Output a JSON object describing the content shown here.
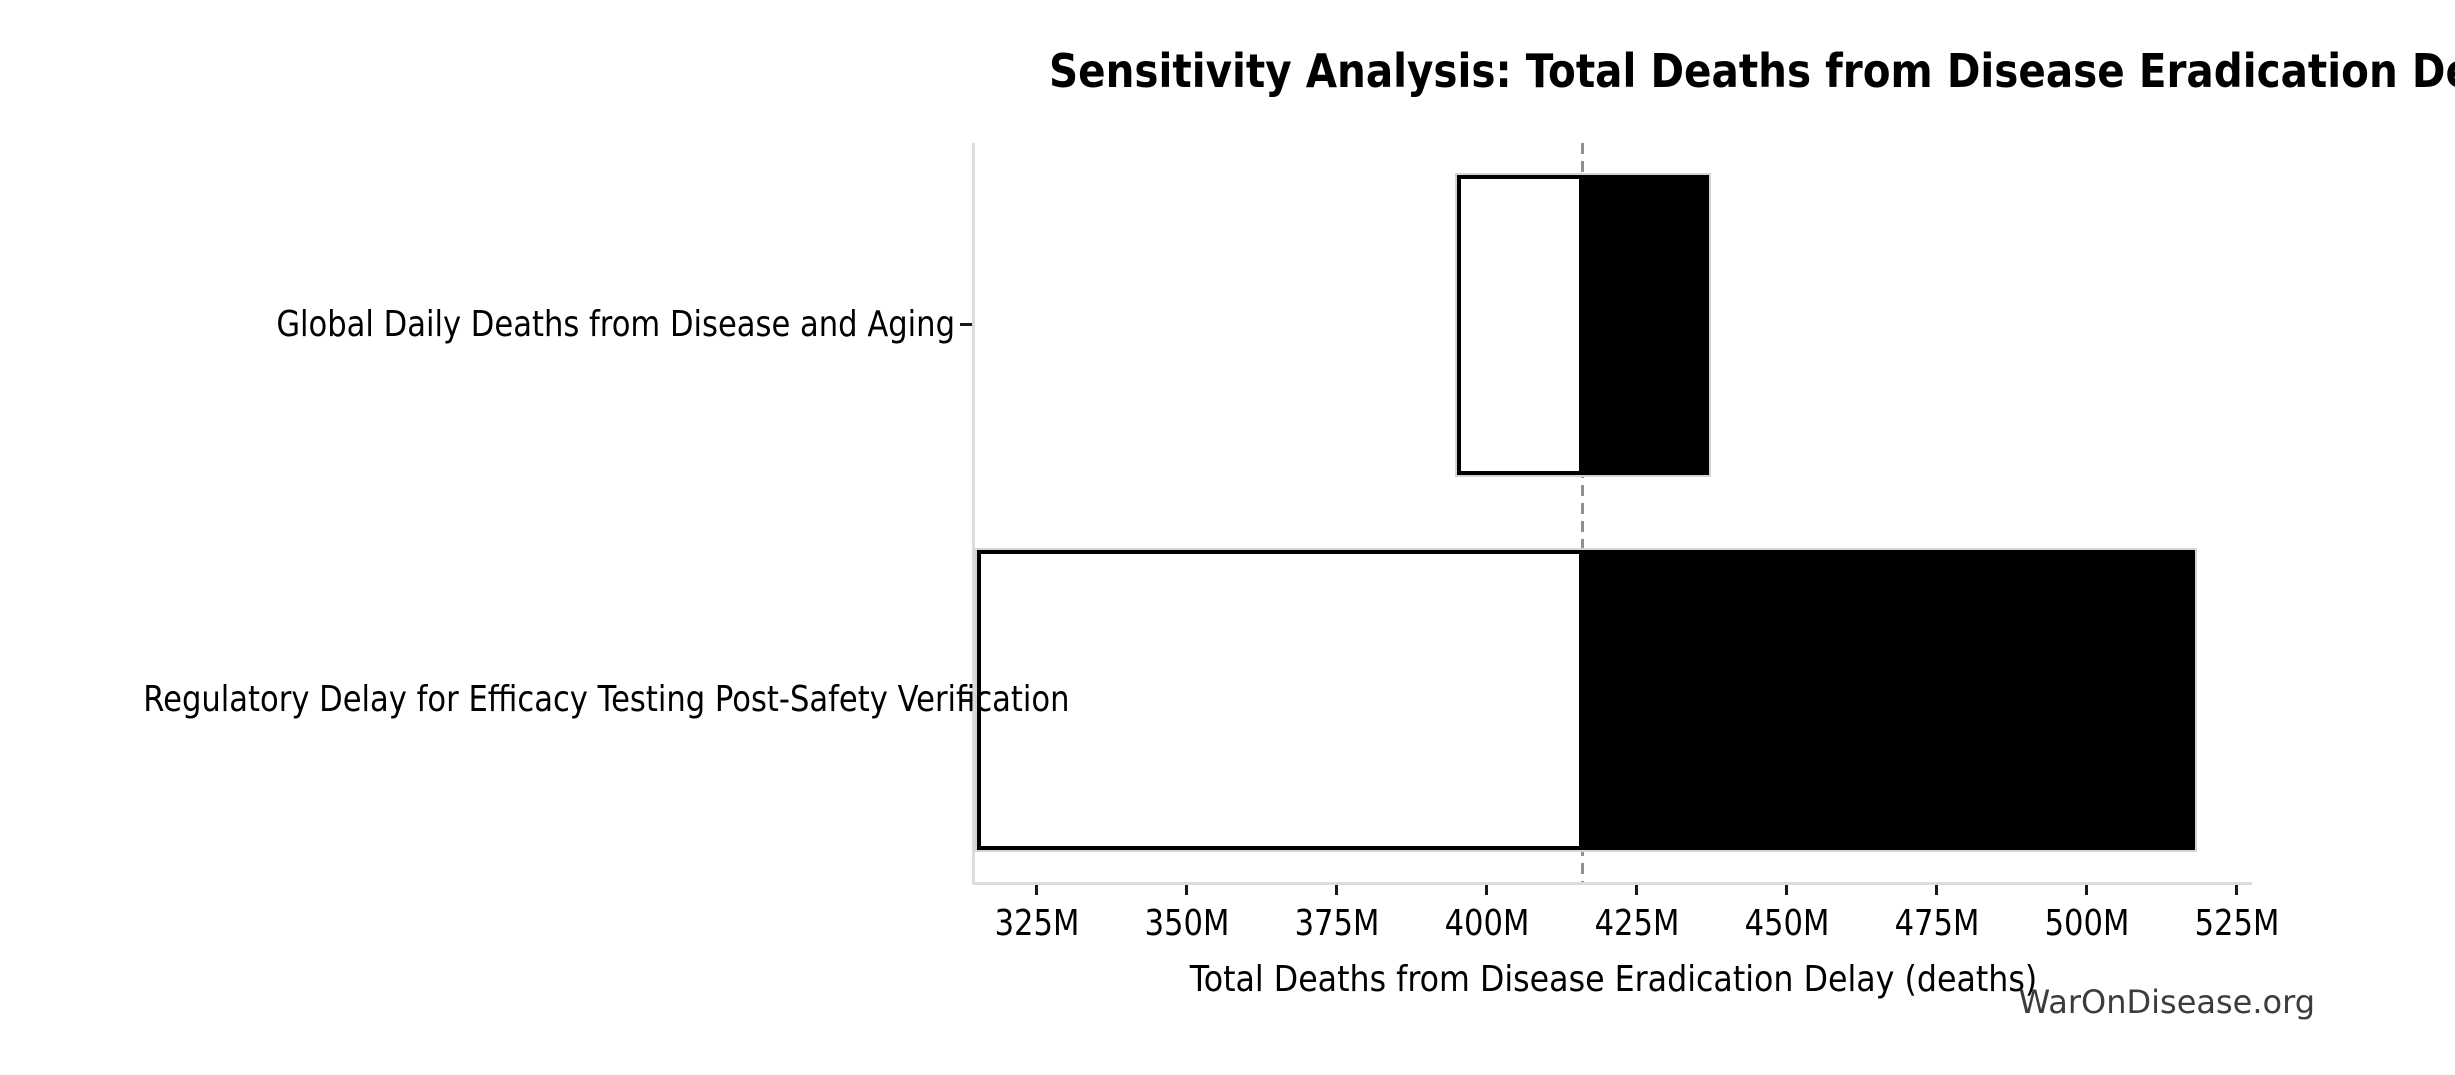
{
  "figure": {
    "background": "#ffffff"
  },
  "watermark": {
    "text": "WarOnDisease.org",
    "color": "#3c3c3c"
  },
  "chart_data": {
    "type": "bar",
    "subtype": "tornado-sensitivity",
    "orientation": "horizontal",
    "title": "Sensitivity Analysis: Total Deaths from Disease Eradication Delay",
    "xlabel": "Total Deaths from Disease Eradication Delay (deaths)",
    "ylabel": "",
    "value_unit": "millions of deaths",
    "baseline_value": 416,
    "xlim": [
      314.7,
      527.5
    ],
    "xticks": [
      325,
      350,
      375,
      400,
      425,
      450,
      475,
      500,
      525
    ],
    "xtick_labels": [
      "325M",
      "350M",
      "375M",
      "400M",
      "425M",
      "450M",
      "475M",
      "500M",
      "525M"
    ],
    "grid": false,
    "legend": null,
    "categories": [
      "Global Daily Deaths from Disease and Aging",
      "Regulatory Delay for Efficacy Testing Post-Safety Verification"
    ],
    "bars": [
      {
        "category": "Global Daily Deaths from Disease and Aging",
        "low": 395,
        "high": 437
      },
      {
        "category": "Regulatory Delay for Efficacy Testing Post-Safety Verification",
        "low": 315,
        "high": 518
      }
    ],
    "colors": {
      "low_segment_fill": "#ffffff",
      "low_segment_edge": "#000000",
      "high_segment_fill": "#000000",
      "high_segment_edge": "#d4d4d4",
      "baseline_line": "#909090",
      "spine": "#dcdcdc",
      "tick": "#1a1a1a",
      "text": "#000000"
    }
  }
}
